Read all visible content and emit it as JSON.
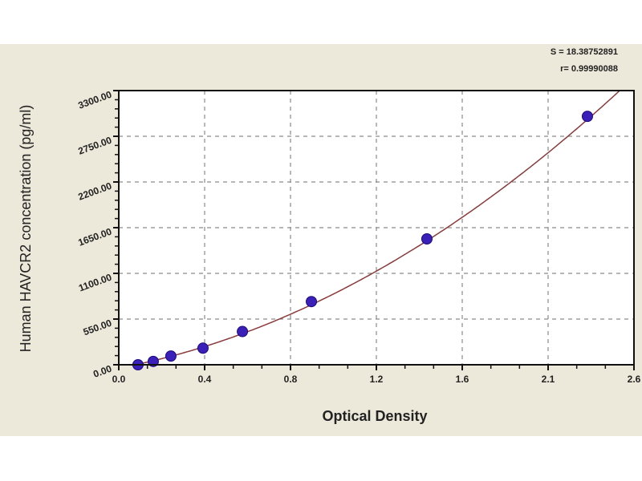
{
  "chart_data": {
    "type": "scatter",
    "xlabel": "Optical Density",
    "ylabel": "Human HAVCR2 concentration (pg/ml)",
    "x_tick_labels": [
      "0.0",
      "0.4",
      "0.8",
      "1.2",
      "1.6",
      "2.1",
      "2.6"
    ],
    "y_tick_labels": [
      "0.00",
      "550.00",
      "1100.00",
      "1650.00",
      "2200.00",
      "2750.00",
      "3300.00"
    ],
    "xlim": [
      0,
      2.6
    ],
    "ylim": [
      0,
      3300
    ],
    "grid": true,
    "annotations": [
      "S = 18.38752891",
      "r= 0.99990088"
    ],
    "points": {
      "x": [
        0.097,
        0.174,
        0.263,
        0.425,
        0.624,
        0.972,
        1.555,
        2.365
      ],
      "y": [
        0,
        40,
        105,
        200,
        400,
        760,
        1515,
        2990
      ]
    },
    "fit_curve": {
      "type": "polynomial",
      "coefficients": [
        -40,
        449,
        345
      ]
    },
    "colors": {
      "points": "#3a1fb8",
      "curve": "#8b3a3a",
      "background": "#ece9da",
      "plot_area": "#ffffff",
      "grid": "#8a8a8a"
    }
  }
}
